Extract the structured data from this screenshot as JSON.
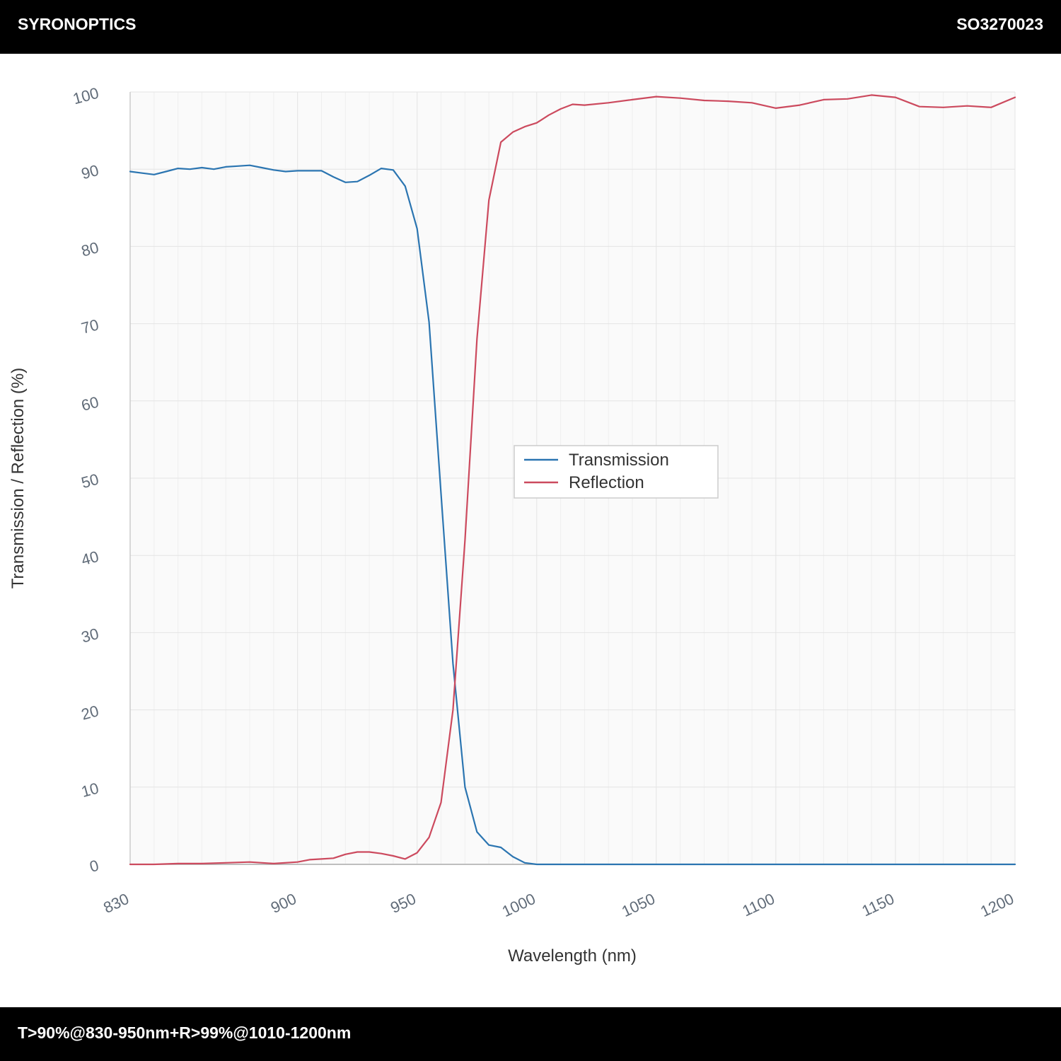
{
  "header": {
    "brand": "SYRONOPTICS",
    "code": "SO3270023"
  },
  "footer": {
    "spec": "T>90%@830-950nm+R>99%@1010-1200nm"
  },
  "chart_data": {
    "type": "line",
    "xlabel": "Wavelength (nm)",
    "ylabel": "Transmission / Reflection (%)",
    "xlim": [
      830,
      1200
    ],
    "ylim": [
      0,
      100
    ],
    "xticks": [
      830,
      900,
      950,
      1000,
      1050,
      1100,
      1150,
      1200
    ],
    "yticks": [
      0,
      10,
      20,
      30,
      40,
      50,
      60,
      70,
      80,
      90,
      100
    ],
    "grid": true,
    "legend_position": "center",
    "series": [
      {
        "name": "Transmission",
        "color": "#2b75b1",
        "x": [
          830,
          835,
          840,
          845,
          850,
          855,
          860,
          865,
          870,
          875,
          880,
          885,
          890,
          895,
          900,
          905,
          910,
          915,
          920,
          925,
          930,
          935,
          940,
          945,
          950,
          955,
          960,
          965,
          970,
          975,
          980,
          985,
          990,
          995,
          1000,
          1005,
          1010,
          1015,
          1020,
          1025,
          1030,
          1050,
          1100,
          1150,
          1200
        ],
        "y": [
          89.7,
          89.5,
          89.3,
          89.7,
          90.1,
          90.0,
          90.2,
          90.0,
          90.3,
          90.4,
          90.5,
          90.2,
          89.9,
          89.7,
          89.8,
          89.8,
          89.8,
          89.0,
          88.3,
          88.4,
          89.2,
          90.1,
          89.9,
          87.8,
          82.3,
          70.2,
          48.0,
          26.0,
          10.0,
          4.2,
          2.5,
          2.2,
          1.0,
          0.2,
          0.0,
          0.0,
          0.0,
          0.0,
          0.0,
          0.0,
          0.0,
          0.0,
          0.0,
          0.0,
          0.0
        ]
      },
      {
        "name": "Reflection",
        "color": "#cc4a5e",
        "x": [
          830,
          840,
          850,
          860,
          870,
          880,
          890,
          900,
          905,
          910,
          915,
          920,
          925,
          930,
          935,
          940,
          945,
          950,
          955,
          960,
          965,
          970,
          975,
          980,
          985,
          990,
          995,
          1000,
          1005,
          1010,
          1015,
          1020,
          1030,
          1040,
          1050,
          1060,
          1070,
          1080,
          1090,
          1100,
          1110,
          1120,
          1130,
          1140,
          1150,
          1160,
          1170,
          1180,
          1190,
          1200
        ],
        "y": [
          0.0,
          0.0,
          0.1,
          0.1,
          0.2,
          0.3,
          0.1,
          0.3,
          0.6,
          0.7,
          0.8,
          1.3,
          1.6,
          1.6,
          1.4,
          1.1,
          0.7,
          1.5,
          3.5,
          8.0,
          20.0,
          42.0,
          68.0,
          86.0,
          93.5,
          94.8,
          95.5,
          96.0,
          97.0,
          97.8,
          98.4,
          98.3,
          98.6,
          99.0,
          99.4,
          99.2,
          98.9,
          98.8,
          98.6,
          97.9,
          98.3,
          99.0,
          99.1,
          99.6,
          99.3,
          98.1,
          98.0,
          98.2,
          98.0,
          99.3
        ]
      }
    ]
  }
}
